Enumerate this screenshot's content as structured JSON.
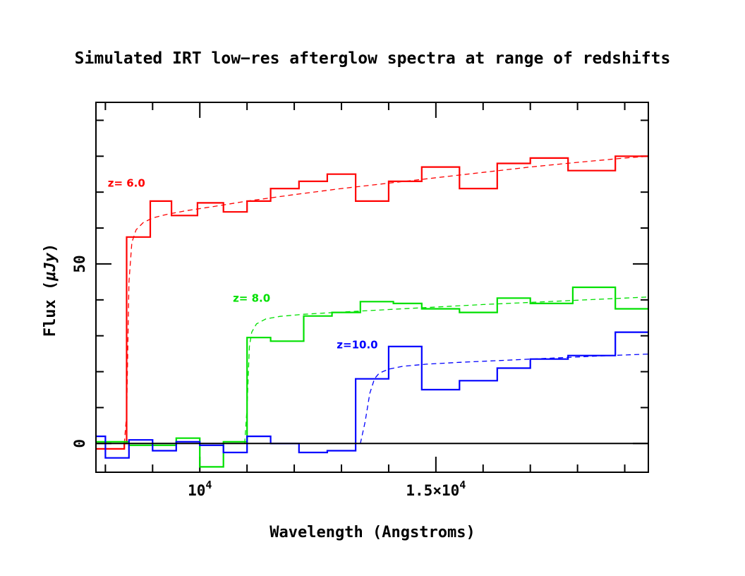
{
  "chart_data": {
    "type": "line",
    "title": "Simulated IRT low−res afterglow spectra at range of redshifts",
    "xlabel": "Wavelength (Angstroms)",
    "ylabel_prefix": "Flux (",
    "ylabel_symbol": "μJy",
    "ylabel_suffix": ")",
    "xlim": [
      7800,
      19500
    ],
    "ylim": [
      -8,
      95
    ],
    "x_major_ticks": [
      10000,
      15000
    ],
    "x_minor_ticks": [
      8000,
      9000,
      11000,
      12000,
      13000,
      14000,
      16000,
      17000,
      18000,
      19000
    ],
    "y_major_ticks": [
      0,
      50
    ],
    "y_minor_ticks": [
      10,
      20,
      30,
      40,
      60,
      70,
      80,
      90
    ],
    "x_tick_labels": [
      {
        "base": "10",
        "exp": "4",
        "value": 10000
      },
      {
        "base": "1.5×10",
        "exp": "4",
        "value": 15000
      }
    ],
    "y_tick_labels": [
      {
        "text": "0",
        "value": 0
      },
      {
        "text": "50",
        "value": 50
      }
    ],
    "zero_line": true,
    "series": [
      {
        "name": "z= 6.0",
        "redshift": 6.0,
        "color": "#ff0000",
        "label_anchor": [
          8050,
          71.5
        ],
        "binned": {
          "edges": [
            7800,
            8400,
            8450,
            8950,
            9400,
            9950,
            10500,
            11000,
            11500,
            12100,
            12700,
            13300,
            14000,
            14700,
            15500,
            16300,
            17000,
            17800,
            18800,
            19500
          ],
          "values": [
            -1.5,
            0,
            57.5,
            67.5,
            63.5,
            67,
            64.5,
            67.5,
            71,
            73,
            75,
            67.5,
            73,
            77,
            71,
            78,
            79.5,
            76,
            80
          ]
        },
        "model": {
          "x": [
            8400,
            8450,
            8500,
            8560,
            8650,
            8800,
            9000,
            9300,
            9700,
            10300,
            11000,
            12000,
            13000,
            14000,
            15000,
            16000,
            17000,
            18000,
            19000,
            19500
          ],
          "y": [
            0,
            8,
            45,
            56,
            59.5,
            61.5,
            62.8,
            63.8,
            64.8,
            66,
            67.5,
            69.3,
            71,
            72.5,
            74,
            75.5,
            77,
            78.3,
            79.5,
            80
          ]
        }
      },
      {
        "name": "z= 8.0",
        "redshift": 8.0,
        "color": "#00e000",
        "label_anchor": [
          10700,
          39.5
        ],
        "binned": {
          "edges": [
            7800,
            8500,
            9500,
            10000,
            10500,
            11000,
            11500,
            12200,
            12800,
            13400,
            14100,
            14700,
            15500,
            16300,
            17000,
            17900,
            18800,
            19500
          ],
          "values": [
            0.5,
            -0.5,
            1.5,
            -6.5,
            0.5,
            29.5,
            28.5,
            35.5,
            36.5,
            39.5,
            39,
            37.5,
            36.5,
            40.5,
            39,
            43.5,
            37.5
          ]
        },
        "model": {
          "x": [
            10950,
            11000,
            11050,
            11100,
            11200,
            11400,
            11700,
            12200,
            13000,
            14000,
            15000,
            16000,
            17000,
            18000,
            19000,
            19500
          ],
          "y": [
            0,
            10,
            27,
            31,
            33.3,
            34.7,
            35.4,
            36,
            36.6,
            37.3,
            38,
            38.7,
            39.3,
            39.9,
            40.5,
            40.8
          ]
        }
      },
      {
        "name": "z=10.0",
        "redshift": 10.0,
        "color": "#0000ff",
        "label_anchor": [
          12900,
          26.5
        ],
        "binned": {
          "edges": [
            7800,
            8000,
            8500,
            9000,
            9500,
            10000,
            10500,
            11000,
            11500,
            12100,
            12700,
            13300,
            14000,
            14700,
            15500,
            16300,
            17000,
            17800,
            18800,
            19500
          ],
          "values": [
            2,
            -4,
            1,
            -2,
            0.5,
            -0.5,
            -2.5,
            2,
            0,
            -2.5,
            -2,
            18,
            27,
            15,
            17.5,
            21,
            23.5,
            24.5,
            31
          ]
        },
        "model": {
          "x": [
            13400,
            13500,
            13600,
            13700,
            13800,
            14000,
            14300,
            14800,
            15500,
            16500,
            17500,
            18500,
            19500
          ],
          "y": [
            0,
            6,
            14,
            18,
            19.6,
            20.7,
            21.5,
            22.1,
            22.6,
            23.2,
            23.8,
            24.4,
            24.9
          ]
        }
      }
    ]
  }
}
